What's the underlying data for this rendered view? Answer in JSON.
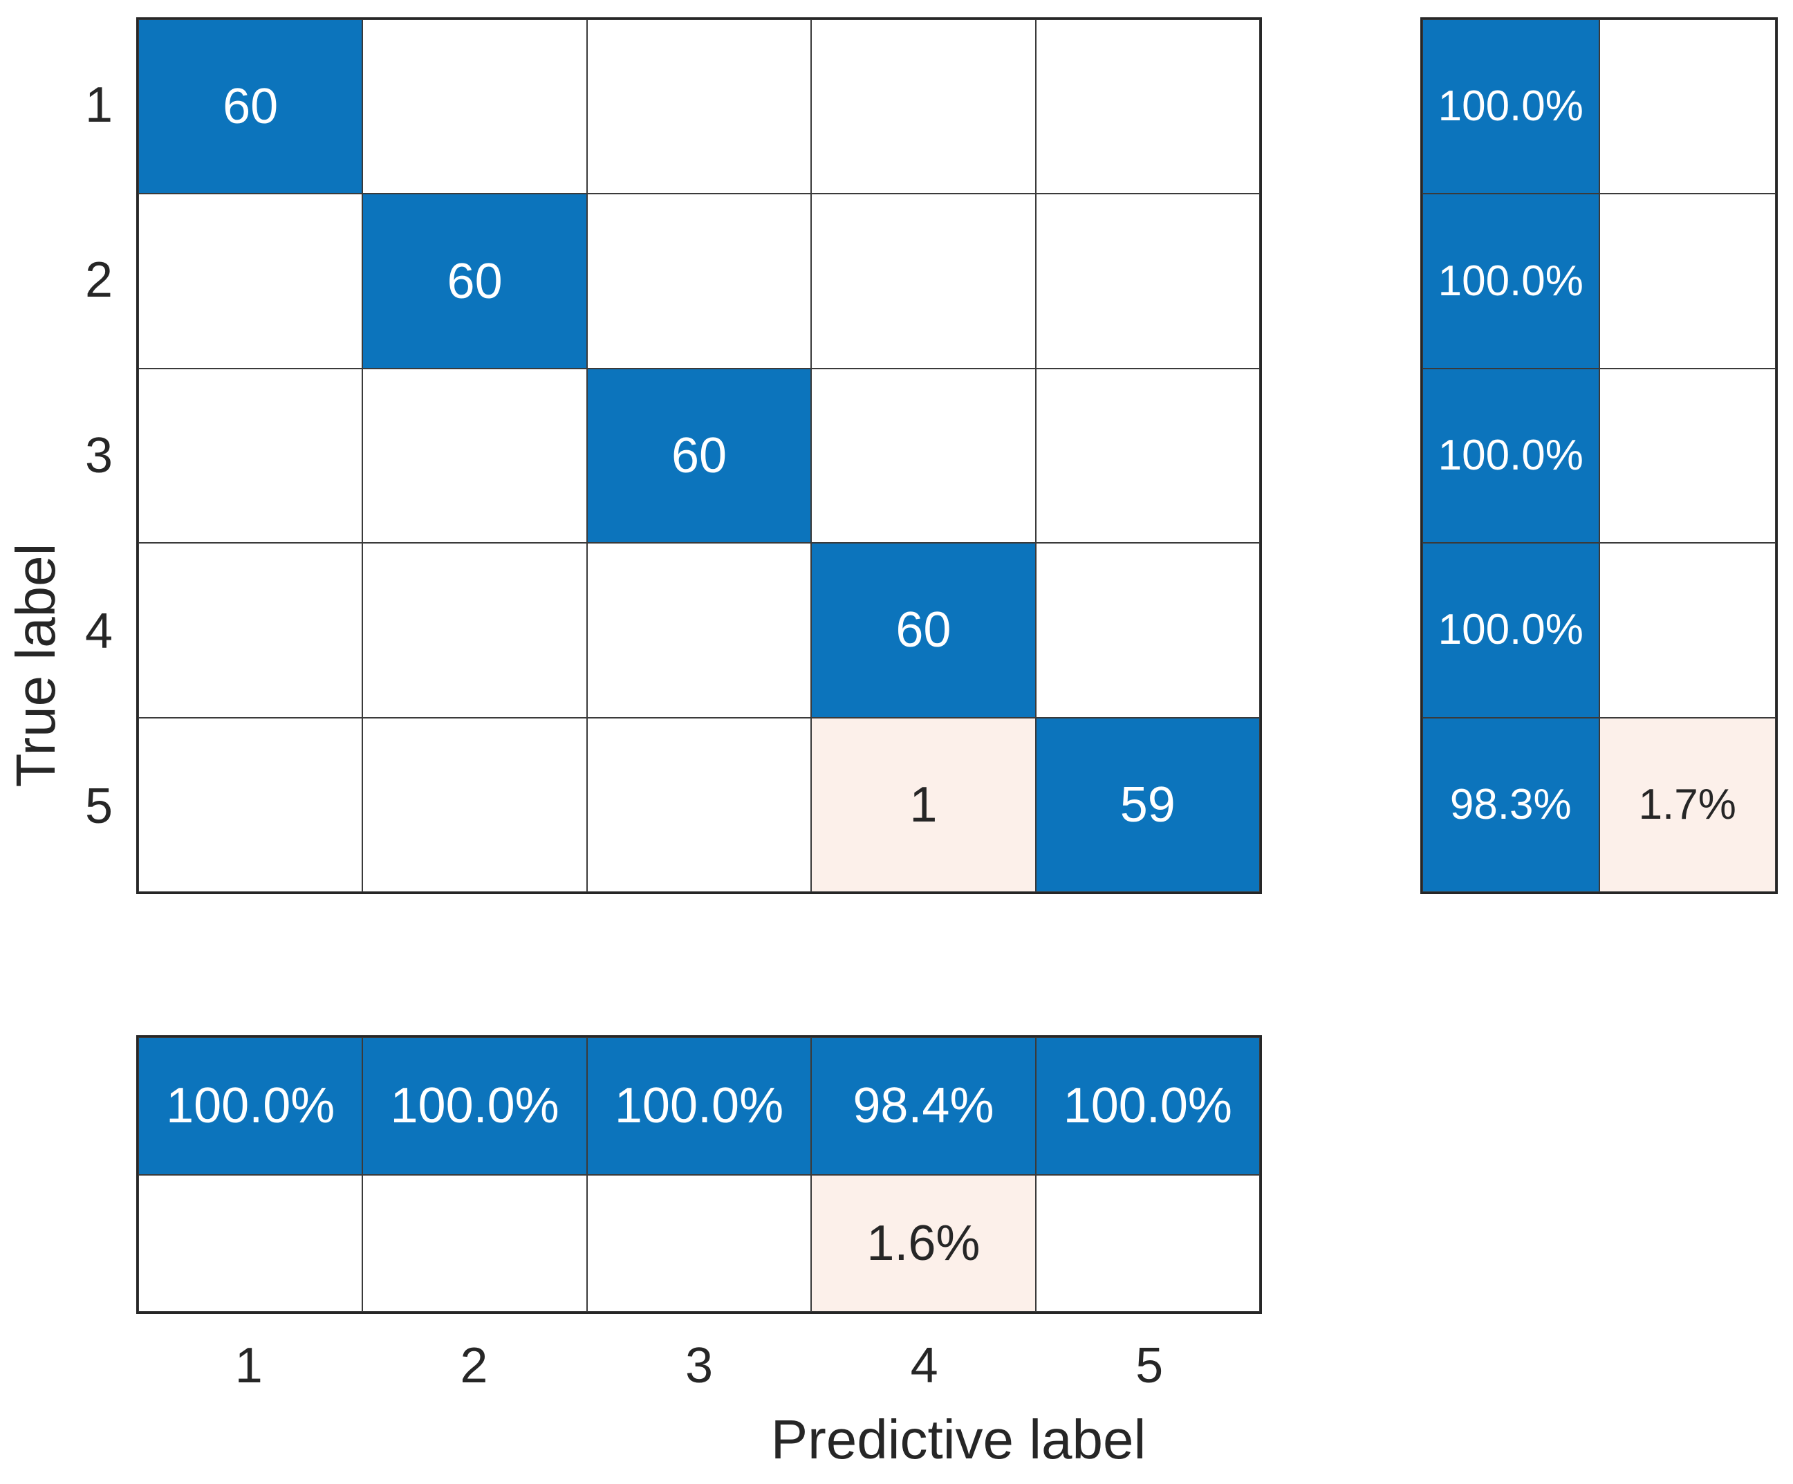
{
  "figure": {
    "colors": {
      "diagonal_blue": "#0C74BC",
      "offdiag_pink": "#FCF0EA",
      "empty_white": "#FFFFFF",
      "grid_line": "#3a3a3a",
      "frame": "#262626",
      "text_dark": "#262626",
      "text_light": "#FFFFFF"
    }
  },
  "y_axis": {
    "label": "True label",
    "ticks": [
      "1",
      "2",
      "3",
      "4",
      "5"
    ]
  },
  "x_axis": {
    "label": "Predictive label",
    "ticks": [
      "1",
      "2",
      "3",
      "4",
      "5"
    ]
  },
  "matrix": {
    "cells": [
      [
        {
          "v": "60",
          "t": "blue"
        },
        {
          "v": "",
          "t": "empty"
        },
        {
          "v": "",
          "t": "empty"
        },
        {
          "v": "",
          "t": "empty"
        },
        {
          "v": "",
          "t": "empty"
        }
      ],
      [
        {
          "v": "",
          "t": "empty"
        },
        {
          "v": "60",
          "t": "blue"
        },
        {
          "v": "",
          "t": "empty"
        },
        {
          "v": "",
          "t": "empty"
        },
        {
          "v": "",
          "t": "empty"
        }
      ],
      [
        {
          "v": "",
          "t": "empty"
        },
        {
          "v": "",
          "t": "empty"
        },
        {
          "v": "60",
          "t": "blue"
        },
        {
          "v": "",
          "t": "empty"
        },
        {
          "v": "",
          "t": "empty"
        }
      ],
      [
        {
          "v": "",
          "t": "empty"
        },
        {
          "v": "",
          "t": "empty"
        },
        {
          "v": "",
          "t": "empty"
        },
        {
          "v": "60",
          "t": "blue"
        },
        {
          "v": "",
          "t": "empty"
        }
      ],
      [
        {
          "v": "",
          "t": "empty"
        },
        {
          "v": "",
          "t": "empty"
        },
        {
          "v": "",
          "t": "empty"
        },
        {
          "v": "1",
          "t": "pink"
        },
        {
          "v": "59",
          "t": "blue"
        }
      ]
    ]
  },
  "row_summary": {
    "cells": [
      [
        {
          "v": "100.0%",
          "t": "blue"
        },
        {
          "v": "",
          "t": "empty"
        }
      ],
      [
        {
          "v": "100.0%",
          "t": "blue"
        },
        {
          "v": "",
          "t": "empty"
        }
      ],
      [
        {
          "v": "100.0%",
          "t": "blue"
        },
        {
          "v": "",
          "t": "empty"
        }
      ],
      [
        {
          "v": "100.0%",
          "t": "blue"
        },
        {
          "v": "",
          "t": "empty"
        }
      ],
      [
        {
          "v": "98.3%",
          "t": "blue"
        },
        {
          "v": "1.7%",
          "t": "pink"
        }
      ]
    ]
  },
  "col_summary": {
    "cells": [
      [
        {
          "v": "100.0%",
          "t": "blue"
        },
        {
          "v": "100.0%",
          "t": "blue"
        },
        {
          "v": "100.0%",
          "t": "blue"
        },
        {
          "v": "98.4%",
          "t": "blue"
        },
        {
          "v": "100.0%",
          "t": "blue"
        }
      ],
      [
        {
          "v": "",
          "t": "empty"
        },
        {
          "v": "",
          "t": "empty"
        },
        {
          "v": "",
          "t": "empty"
        },
        {
          "v": "1.6%",
          "t": "pink"
        },
        {
          "v": "",
          "t": "empty"
        }
      ]
    ]
  },
  "chart_data": {
    "type": "heatmap",
    "subtype": "confusion-matrix",
    "classes": [
      "1",
      "2",
      "3",
      "4",
      "5"
    ],
    "matrix_counts": [
      [
        60,
        0,
        0,
        0,
        0
      ],
      [
        0,
        60,
        0,
        0,
        0
      ],
      [
        0,
        0,
        60,
        0,
        0
      ],
      [
        0,
        0,
        0,
        60,
        0
      ],
      [
        0,
        0,
        0,
        1,
        59
      ]
    ],
    "row_summary_correct_pct": [
      100.0,
      100.0,
      100.0,
      100.0,
      98.3
    ],
    "row_summary_incorrect_pct": [
      0,
      0,
      0,
      0,
      1.7
    ],
    "col_summary_correct_pct": [
      100.0,
      100.0,
      100.0,
      98.4,
      100.0
    ],
    "col_summary_incorrect_pct": [
      0,
      0,
      0,
      1.6,
      0
    ],
    "xlabel": "Predictive label",
    "ylabel": "True label",
    "legend": "none",
    "grid": "on"
  }
}
